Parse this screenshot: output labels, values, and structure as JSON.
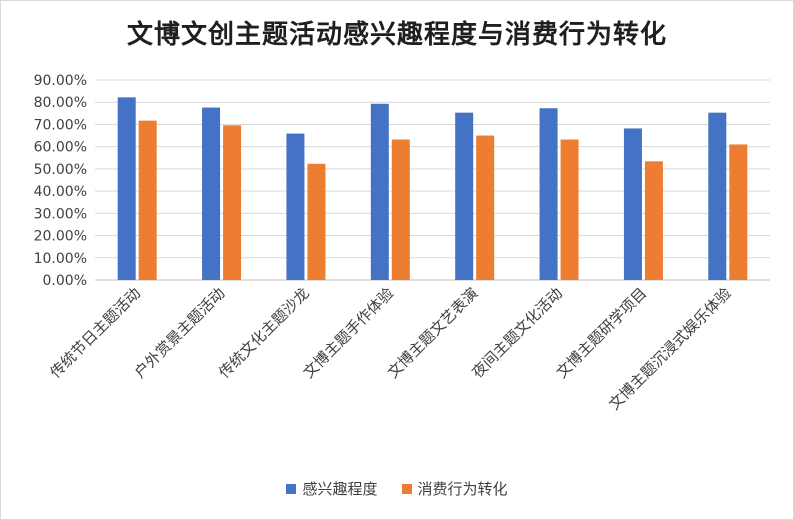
{
  "chart_data": {
    "type": "bar",
    "title": "文博文创主题活动感兴趣程度与消费行为转化",
    "categories": [
      "传统节日主题活动",
      "户外赏景主题活动",
      "传统文化主题沙龙",
      "文博主题手作体验",
      "文博主题文艺表演",
      "夜间主题文化活动",
      "文博主题研学项目",
      "文博主题沉浸式娱乐体验"
    ],
    "series": [
      {
        "name": "感兴趣程度",
        "color": "#4472c4",
        "values": [
          0.822,
          0.776,
          0.659,
          0.793,
          0.753,
          0.773,
          0.682,
          0.753
        ]
      },
      {
        "name": "消费行为转化",
        "color": "#ed7d31",
        "values": [
          0.717,
          0.696,
          0.523,
          0.632,
          0.65,
          0.632,
          0.534,
          0.61
        ]
      }
    ],
    "ylim": [
      0,
      0.9
    ],
    "yticks": [
      0,
      0.1,
      0.2,
      0.3,
      0.4,
      0.5,
      0.6,
      0.7,
      0.8,
      0.9
    ],
    "ytick_labels": [
      "0.00%",
      "10.00%",
      "20.00%",
      "30.00%",
      "40.00%",
      "50.00%",
      "60.00%",
      "70.00%",
      "80.00%",
      "90.00%"
    ],
    "grid": true,
    "legend_position": "bottom"
  }
}
